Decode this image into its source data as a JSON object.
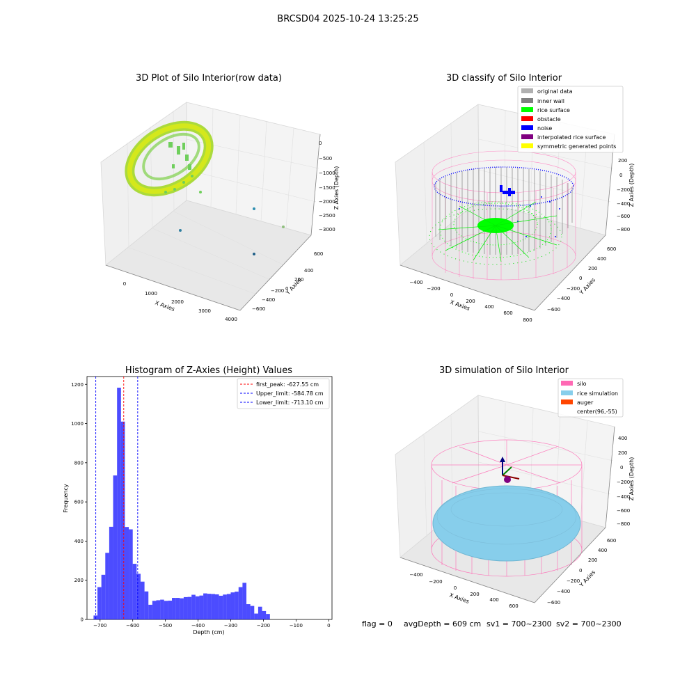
{
  "figure": {
    "suptitle": "BRCSD04 2025-10-24 13:25:25",
    "footer": {
      "flag": "flag = 0",
      "avg_depth": "avgDepth = 609 cm",
      "sv1": "sv1 = 700~2300",
      "sv2": "sv2 = 700~2300"
    }
  },
  "panels": {
    "raw": {
      "title": "3D Plot of Silo Interior(row data)",
      "xlabel": "X Axies",
      "ylabel": "Y Axies",
      "zlabel": "Z Axies (Depth)",
      "xticks": [
        "0",
        "1000",
        "2000",
        "3000",
        "4000"
      ],
      "yticks": [
        "600",
        "400",
        "200",
        "0",
        "−200",
        "−400",
        "−600"
      ],
      "zticks": [
        "0",
        "−500",
        "−1000",
        "−1500",
        "−2000",
        "−2500",
        "−3000"
      ]
    },
    "classify": {
      "title": "3D classify of Silo Interior",
      "xlabel": "X Axies",
      "ylabel": "Y Axies",
      "zlabel": "Z Axies (Depth)",
      "xticks": [
        "−400",
        "−200",
        "0",
        "200",
        "400",
        "600",
        "800"
      ],
      "yticks": [
        "600",
        "400",
        "200",
        "0",
        "−200",
        "−400",
        "−600"
      ],
      "zticks": [
        "200",
        "0",
        "−200",
        "−400",
        "−600",
        "−800"
      ],
      "legend": [
        {
          "label": "original data",
          "color": "#b0b0b0"
        },
        {
          "label": "inner wall",
          "color": "#808080"
        },
        {
          "label": "rice surface",
          "color": "#00ff00"
        },
        {
          "label": "obstacle",
          "color": "#ff0000"
        },
        {
          "label": "noise",
          "color": "#0000ff"
        },
        {
          "label": "interpolated rice surface",
          "color": "#800080"
        },
        {
          "label": "symmetric generated points",
          "color": "#ffff00"
        }
      ]
    },
    "simulation": {
      "title": "3D simulation of Silo Interior",
      "xlabel": "X Axies",
      "ylabel": "Y Axies",
      "zlabel": "Z Axies (Depth)",
      "xticks": [
        "−400",
        "−200",
        "0",
        "200",
        "400",
        "600"
      ],
      "yticks": [
        "600",
        "400",
        "200",
        "0",
        "−200",
        "−400",
        "−600"
      ],
      "zticks": [
        "400",
        "200",
        "0",
        "−200",
        "−400",
        "−600",
        "−800"
      ],
      "legend": [
        {
          "label": "silo",
          "color": "#ff69b4"
        },
        {
          "label": "rice simulation",
          "color": "#87ceeb"
        },
        {
          "label": "auger",
          "color": "#ff4500"
        },
        {
          "label": "center(96,-55)",
          "color": "#ffffff"
        }
      ]
    }
  },
  "chart_data": [
    {
      "type": "scatter",
      "title": "3D Plot of Silo Interior(row data)",
      "xlabel": "X Axies",
      "ylabel": "Y Axies",
      "zlabel": "Z Axies (Depth)",
      "xlim": [
        -400,
        4200
      ],
      "ylim": [
        -700,
        700
      ],
      "zlim": [
        -3300,
        100
      ]
    },
    {
      "type": "scatter",
      "title": "3D classify of Silo Interior",
      "xlabel": "X Axies",
      "ylabel": "Y Axies",
      "zlabel": "Z Axies (Depth)",
      "series": [
        {
          "name": "original data"
        },
        {
          "name": "inner wall"
        },
        {
          "name": "rice surface"
        },
        {
          "name": "obstacle"
        },
        {
          "name": "noise"
        },
        {
          "name": "interpolated rice surface"
        },
        {
          "name": "symmetric generated points"
        }
      ]
    },
    {
      "type": "bar",
      "title": "Histogram of Z-Axies (Height) Values",
      "xlabel": "Depth (cm)",
      "ylabel": "Frequency",
      "xlim": [
        -740,
        10
      ],
      "ylim": [
        0,
        1240
      ],
      "xticks": [
        -700,
        -600,
        -500,
        -400,
        -300,
        -200,
        -100,
        0
      ],
      "xtick_labels": [
        "−700",
        "−600",
        "−500",
        "−400",
        "−300",
        "−200",
        "−100",
        "0"
      ],
      "yticks": [
        0,
        200,
        400,
        600,
        800,
        1000,
        1200
      ],
      "bin_start": -720,
      "bin_width": 12,
      "values": [
        20,
        165,
        228,
        340,
        473,
        735,
        1183,
        1010,
        472,
        460,
        284,
        233,
        193,
        143,
        75,
        95,
        98,
        101,
        95,
        96,
        110,
        110,
        108,
        114,
        115,
        126,
        118,
        122,
        133,
        131,
        130,
        128,
        121,
        127,
        130,
        138,
        142,
        165,
        187,
        78,
        69,
        30,
        65,
        43,
        28
      ],
      "color": "#0000ff",
      "vlines": [
        {
          "x": -627.55,
          "label": "first_peak: -627.55 cm",
          "color": "#ff0000"
        },
        {
          "x": -584.78,
          "label": "Upper_limit: -584.78 cm",
          "color": "#0000ff"
        },
        {
          "x": -713.1,
          "label": "Lower_limit: -713.10 cm",
          "color": "#0000ff"
        }
      ],
      "legend_position": "upper right"
    },
    {
      "type": "surface",
      "title": "3D simulation of Silo Interior",
      "xlabel": "X Axies",
      "ylabel": "Y Axies",
      "zlabel": "Z Axies (Depth)",
      "series": [
        {
          "name": "silo"
        },
        {
          "name": "rice simulation"
        },
        {
          "name": "auger"
        },
        {
          "name": "center(96,-55)"
        }
      ]
    }
  ]
}
